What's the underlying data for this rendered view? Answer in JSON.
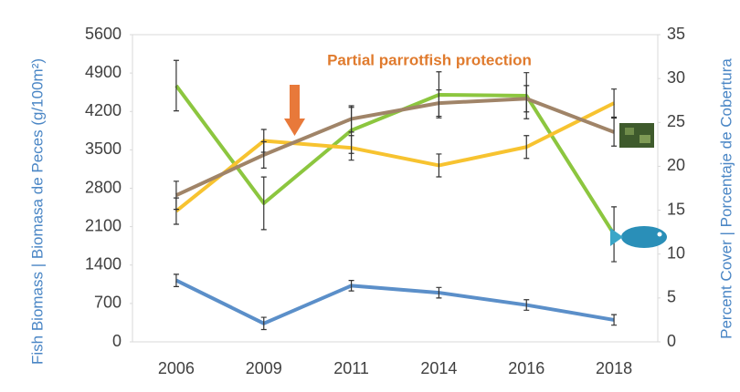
{
  "chart_data": {
    "type": "line",
    "annotation": "Partial parrotfish protection",
    "ylabel": "Fish Biomass | Biomasa de Peces (g/100m²)",
    "y2label": "Percent Cover | Porcentaje de Cobertura",
    "categories": [
      "2006",
      "2009",
      "2011",
      "2014",
      "2016",
      "2018"
    ],
    "ylim": [
      0,
      5600
    ],
    "yticks": [
      0,
      700,
      1400,
      2100,
      2800,
      3500,
      4200,
      4900,
      5600
    ],
    "y2lim": [
      0,
      35
    ],
    "y2ticks": [
      0,
      5,
      10,
      15,
      20,
      25,
      30,
      35
    ],
    "series": [
      {
        "color": "#8cc63f",
        "values": [
          4670,
          2526,
          3855,
          4503,
          4487,
          1961
        ],
        "errors": [
          460,
          480,
          420,
          420,
          420,
          500
        ]
      },
      {
        "color": "#f7c330",
        "axis": "y2",
        "values": [
          14.9,
          22.9,
          22.1,
          20.1,
          22.2,
          27.2
        ],
        "errors": [
          1.5,
          1.3,
          1.4,
          1.3,
          1.3,
          1.6
        ]
      },
      {
        "color": "#a08468",
        "axis": "y2",
        "values": [
          16.7,
          21.3,
          25.4,
          27.2,
          27.7,
          23.9
        ],
        "errors": [
          1.6,
          1.5,
          1.5,
          1.5,
          1.5,
          1.6
        ]
      },
      {
        "color": "#5b8fc9",
        "axis": "y2",
        "values": [
          7.0,
          2.1,
          6.4,
          5.6,
          4.2,
          2.5
        ],
        "errors": [
          0.7,
          0.7,
          0.6,
          0.6,
          0.6,
          0.6
        ]
      }
    ]
  }
}
